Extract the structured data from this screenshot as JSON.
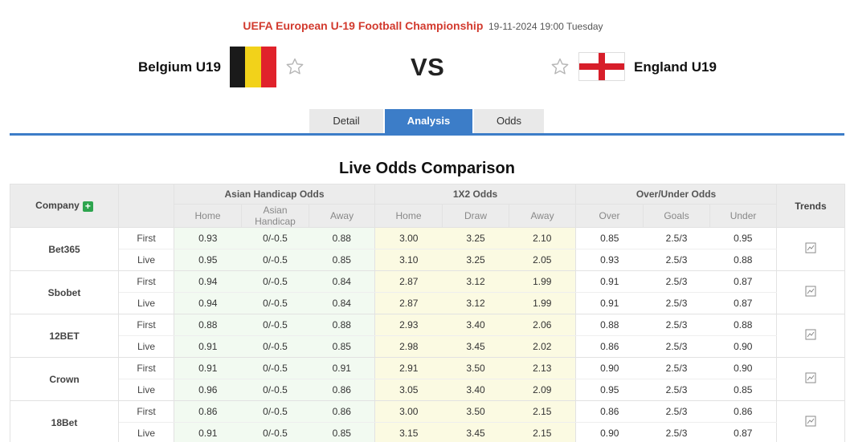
{
  "match": {
    "competition": "UEFA European U-19 Football Championship",
    "datetime": "19-11-2024 19:00 Tuesday",
    "home_team": "Belgium U19",
    "away_team": "England U19",
    "vs_label": "VS"
  },
  "tabs": [
    {
      "label": "Detail",
      "active": false
    },
    {
      "label": "Analysis",
      "active": true
    },
    {
      "label": "Odds",
      "active": false
    }
  ],
  "section_title": "Live Odds Comparison",
  "table": {
    "company_header": "Company",
    "trends_header": "Trends",
    "groups": [
      "Asian Handicap Odds",
      "1X2 Odds",
      "Over/Under Odds"
    ],
    "subheaders": {
      "ah": [
        "Home",
        "Asian Handicap",
        "Away"
      ],
      "x12": [
        "Home",
        "Draw",
        "Away"
      ],
      "ou": [
        "Over",
        "Goals",
        "Under"
      ]
    },
    "companies": [
      {
        "name": "Bet365",
        "rows": [
          {
            "kind": "First",
            "ah": [
              "0.93",
              "0/-0.5",
              "0.88"
            ],
            "x12": [
              "3.00",
              "3.25",
              "2.10"
            ],
            "ou": [
              "0.85",
              "2.5/3",
              "0.95"
            ]
          },
          {
            "kind": "Live",
            "ah": [
              "0.95",
              "0/-0.5",
              "0.85"
            ],
            "x12": [
              "3.10",
              "3.25",
              "2.05"
            ],
            "ou": [
              "0.93",
              "2.5/3",
              "0.88"
            ]
          }
        ]
      },
      {
        "name": "Sbobet",
        "rows": [
          {
            "kind": "First",
            "ah": [
              "0.94",
              "0/-0.5",
              "0.84"
            ],
            "x12": [
              "2.87",
              "3.12",
              "1.99"
            ],
            "ou": [
              "0.91",
              "2.5/3",
              "0.87"
            ]
          },
          {
            "kind": "Live",
            "ah": [
              "0.94",
              "0/-0.5",
              "0.84"
            ],
            "x12": [
              "2.87",
              "3.12",
              "1.99"
            ],
            "ou": [
              "0.91",
              "2.5/3",
              "0.87"
            ]
          }
        ]
      },
      {
        "name": "12BET",
        "rows": [
          {
            "kind": "First",
            "ah": [
              "0.88",
              "0/-0.5",
              "0.88"
            ],
            "x12": [
              "2.93",
              "3.40",
              "2.06"
            ],
            "ou": [
              "0.88",
              "2.5/3",
              "0.88"
            ]
          },
          {
            "kind": "Live",
            "ah": [
              "0.91",
              "0/-0.5",
              "0.85"
            ],
            "x12": [
              "2.98",
              "3.45",
              "2.02"
            ],
            "ou": [
              "0.86",
              "2.5/3",
              "0.90"
            ]
          }
        ]
      },
      {
        "name": "Crown",
        "rows": [
          {
            "kind": "First",
            "ah": [
              "0.91",
              "0/-0.5",
              "0.91"
            ],
            "x12": [
              "2.91",
              "3.50",
              "2.13"
            ],
            "ou": [
              "0.90",
              "2.5/3",
              "0.90"
            ]
          },
          {
            "kind": "Live",
            "ah": [
              "0.96",
              "0/-0.5",
              "0.86"
            ],
            "x12": [
              "3.05",
              "3.40",
              "2.09"
            ],
            "ou": [
              "0.95",
              "2.5/3",
              "0.85"
            ]
          }
        ]
      },
      {
        "name": "18Bet",
        "rows": [
          {
            "kind": "First",
            "ah": [
              "0.86",
              "0/-0.5",
              "0.86"
            ],
            "x12": [
              "3.00",
              "3.50",
              "2.15"
            ],
            "ou": [
              "0.86",
              "2.5/3",
              "0.86"
            ]
          },
          {
            "kind": "Live",
            "ah": [
              "0.91",
              "0/-0.5",
              "0.85"
            ],
            "x12": [
              "3.15",
              "3.45",
              "2.15"
            ],
            "ou": [
              "0.90",
              "2.5/3",
              "0.87"
            ]
          }
        ]
      }
    ]
  },
  "icons": {
    "favorite": "star-outline-icon",
    "add_company": "plus-icon",
    "trend": "line-chart-icon"
  },
  "colors": {
    "competition": "#d23a2e",
    "accent": "#3c7dc8",
    "belgium_flag": [
      "#1a1a1a",
      "#f2d21a",
      "#e0222b"
    ],
    "england_cross": "#d71e2a"
  }
}
